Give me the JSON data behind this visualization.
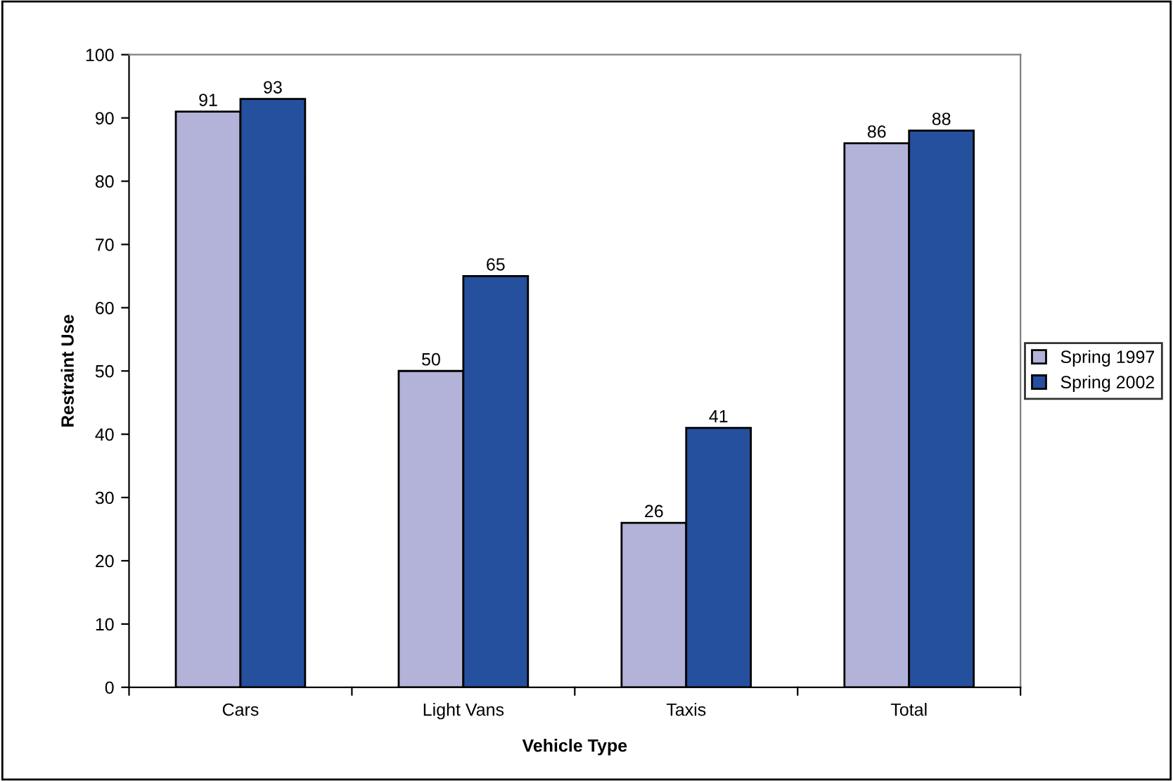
{
  "chart_data": {
    "type": "bar",
    "xlabel": "Vehicle Type",
    "ylabel": "Restraint Use",
    "categories": [
      "Cars",
      "Light Vans",
      "Taxis",
      "Total"
    ],
    "series": [
      {
        "name": "Spring 1997",
        "color": "#b3b3d9",
        "values": [
          91,
          50,
          26,
          86
        ]
      },
      {
        "name": "Spring 2002",
        "color": "#25509e",
        "values": [
          93,
          65,
          41,
          88
        ]
      }
    ],
    "ylim": [
      0,
      100
    ],
    "yticks": [
      0,
      10,
      20,
      30,
      40,
      50,
      60,
      70,
      80,
      90,
      100
    ],
    "data_labels": true,
    "grid": false,
    "legend": "right"
  }
}
